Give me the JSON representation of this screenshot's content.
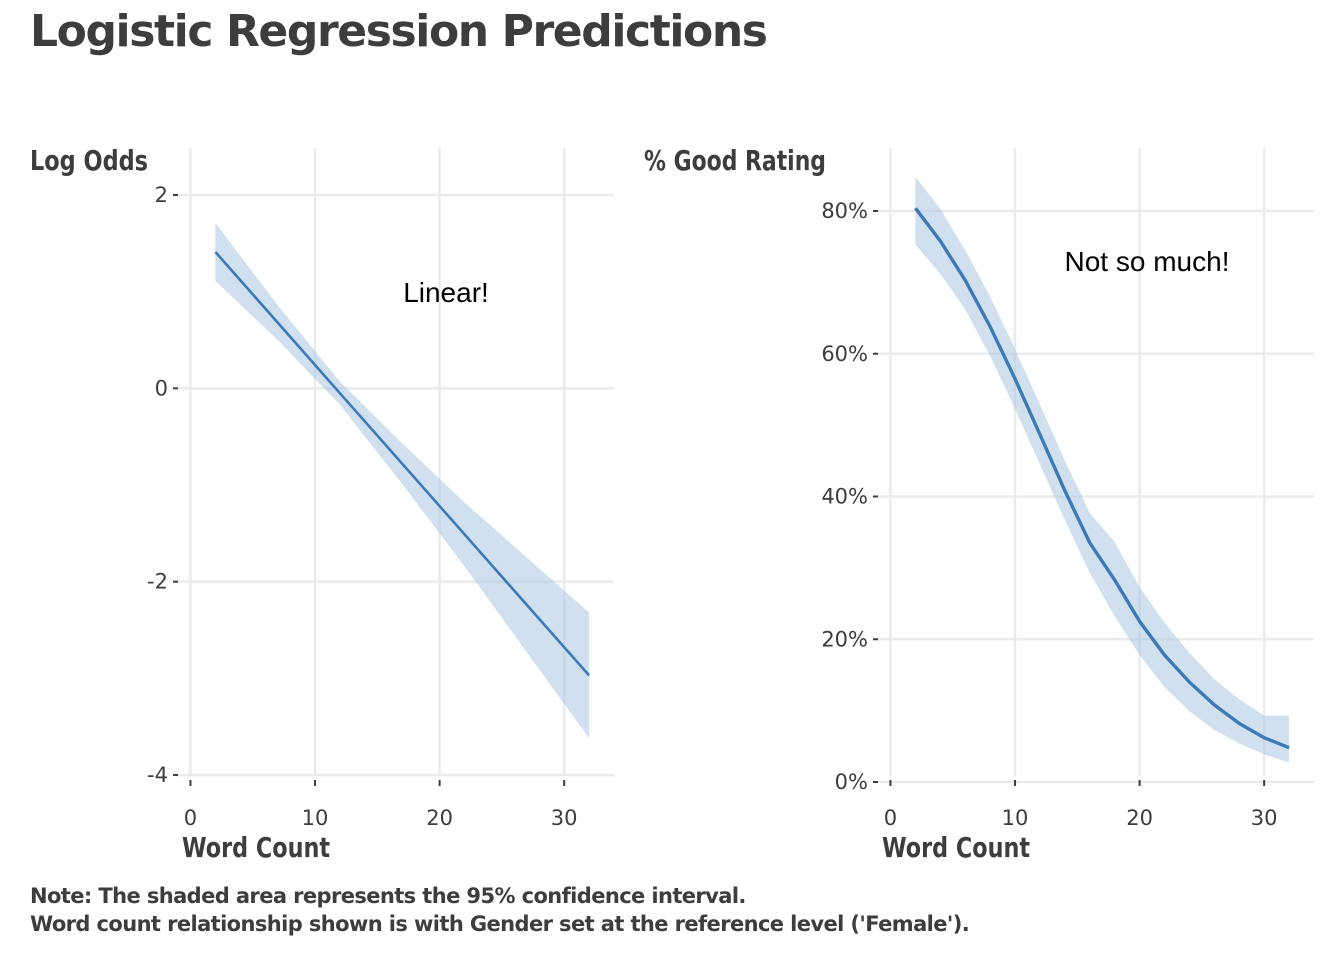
{
  "title": "Logistic Regression Predictions",
  "note": {
    "line1": "Note: The shaded area represents the 95% confidence interval.",
    "line2": "Word count relationship shown is with Gender set at the reference level ('Female')."
  },
  "colors": {
    "line": "#3a7ab8",
    "band": "#a9c6e0",
    "grid": "#ebebeb",
    "text": "#3d3d3d"
  },
  "chart_data": [
    {
      "type": "line",
      "ylabel": "Log Odds",
      "xlabel": "Word Count",
      "annotation": {
        "text": "Linear!",
        "x": 20,
        "y": 0.95
      },
      "xlim": [
        -1,
        34
      ],
      "ylim": [
        -4,
        2.5
      ],
      "xticks": [
        0,
        10,
        20,
        30
      ],
      "xtick_labels": [
        "0",
        "10",
        "20",
        "30"
      ],
      "yticks": [
        -4,
        -2,
        0,
        2
      ],
      "ytick_labels": [
        "-4",
        "-2",
        "0",
        "2"
      ],
      "series": [
        {
          "x": [
            2,
            7,
            12,
            17,
            22,
            27,
            32
          ],
          "y": [
            1.41,
            0.68,
            -0.05,
            -0.78,
            -1.51,
            -2.24,
            -2.97
          ],
          "lower": [
            1.11,
            0.5,
            -0.17,
            -0.99,
            -1.84,
            -2.73,
            -3.62
          ],
          "upper": [
            1.71,
            0.86,
            0.07,
            -0.57,
            -1.18,
            -1.75,
            -2.32
          ]
        }
      ],
      "grid": true
    },
    {
      "type": "line",
      "ylabel": "% Good Rating",
      "xlabel": "Word Count",
      "annotation": {
        "text": "Not so much!",
        "x": 20,
        "y": 0.729
      },
      "xlim": [
        -1,
        34
      ],
      "ylim": [
        0,
        0.85
      ],
      "xticks": [
        0,
        10,
        20,
        30
      ],
      "xtick_labels": [
        "0",
        "10",
        "20",
        "30"
      ],
      "yticks": [
        0,
        0.2,
        0.4,
        0.6,
        0.8
      ],
      "ytick_labels": [
        "0%",
        "20%",
        "40%",
        "60%",
        "80%"
      ],
      "series": [
        {
          "x": [
            2,
            4,
            6,
            8,
            10,
            12,
            14,
            16,
            18,
            20,
            22,
            24,
            26,
            28,
            30,
            32
          ],
          "y": [
            0.804,
            0.758,
            0.703,
            0.638,
            0.565,
            0.487,
            0.408,
            0.335,
            0.283,
            0.225,
            0.178,
            0.14,
            0.108,
            0.082,
            0.062,
            0.048
          ],
          "lower": [
            0.753,
            0.712,
            0.662,
            0.597,
            0.523,
            0.445,
            0.367,
            0.293,
            0.232,
            0.178,
            0.133,
            0.099,
            0.073,
            0.054,
            0.039,
            0.027
          ],
          "upper": [
            0.848,
            0.803,
            0.745,
            0.68,
            0.607,
            0.529,
            0.45,
            0.377,
            0.336,
            0.273,
            0.223,
            0.181,
            0.144,
            0.116,
            0.093,
            0.093
          ]
        }
      ],
      "grid": true
    }
  ]
}
